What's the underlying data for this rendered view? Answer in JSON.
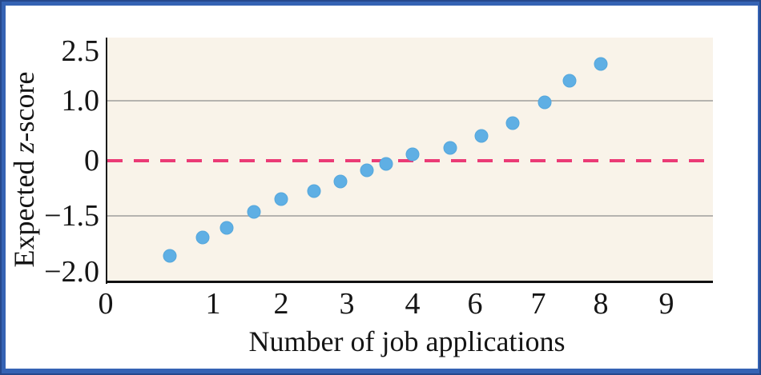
{
  "figure": {
    "y_axis": {
      "title_prefix": "Expected ",
      "title_var": "z",
      "title_suffix": "-score",
      "tick_labels": [
        "2.5",
        "1.0",
        "0",
        "−1.5",
        "−2.0"
      ]
    },
    "x_axis": {
      "title": "Number of job applications",
      "tick_labels": [
        "0",
        "1",
        "2",
        "3",
        "4",
        "6",
        "7",
        "8",
        "9"
      ]
    },
    "colors": {
      "frame_blue": "#3563b4",
      "frame_dark_edge": "#26488c",
      "plot_background": "#f9f3e9",
      "point_blue": "#5fafe4",
      "zero_line_pink": "#eb3b76",
      "gridline_gray": "#b5b3af",
      "axis_black": "#1a1a1a"
    }
  },
  "chart_data": {
    "type": "scatter",
    "title": "",
    "xlabel": "Number of job applications",
    "ylabel": "Expected z-score",
    "x_ticks": [
      0,
      1,
      2,
      3,
      4,
      6,
      7,
      8,
      9
    ],
    "y_ticks": [
      2.5,
      1.0,
      0,
      -1.5,
      -2.0
    ],
    "gridlines_y": [
      1.0,
      -1.5
    ],
    "zero_reference_line_y": 0,
    "zero_reference_line_style": "dashed pink horizontal",
    "legend_position": "none",
    "grid": "horizontal only",
    "axis_note": "tick labels are evenly spaced as printed (nonlinear scale); x axis skips 5",
    "points": [
      {
        "x": 0.6,
        "z": -1.86
      },
      {
        "x": 0.9,
        "z": -1.69
      },
      {
        "x": 1.2,
        "z": -1.61
      },
      {
        "x": 1.6,
        "z": -1.39
      },
      {
        "x": 2.0,
        "z": -1.04
      },
      {
        "x": 2.5,
        "z": -0.82
      },
      {
        "x": 2.9,
        "z": -0.57
      },
      {
        "x": 3.3,
        "z": -0.26
      },
      {
        "x": 3.6,
        "z": -0.09
      },
      {
        "x": 4.0,
        "z": 0.11
      },
      {
        "x": 5.2,
        "z": 0.21
      },
      {
        "x": 6.1,
        "z": 0.41
      },
      {
        "x": 6.6,
        "z": 0.63
      },
      {
        "x": 7.1,
        "z": 0.97
      },
      {
        "x": 7.5,
        "z": 1.6
      },
      {
        "x": 8.0,
        "z": 2.11
      }
    ]
  }
}
